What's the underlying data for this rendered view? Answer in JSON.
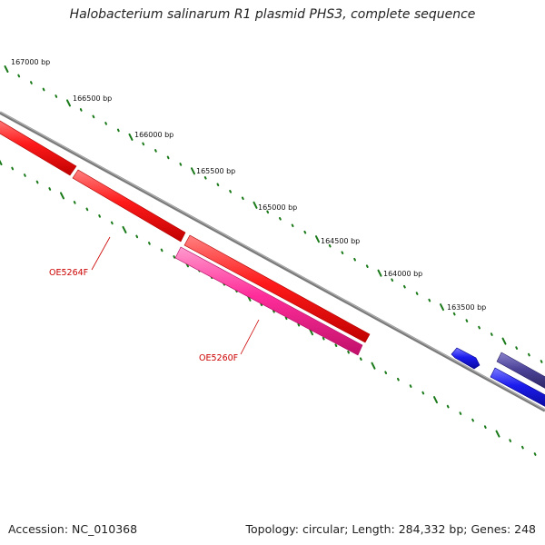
{
  "title": "Halobacterium salinarum R1 plasmid PHS3, complete sequence",
  "footer": {
    "accession": "Accession: NC_010368",
    "summary": "Topology: circular; Length: 284,332 bp; Genes: 248"
  },
  "ruler": {
    "labels": [
      "167000 bp",
      "166500 bp",
      "166000 bp",
      "165500 bp",
      "165000 bp",
      "164500 bp",
      "164000 bp",
      "163500 bp"
    ]
  },
  "genes": [
    {
      "label": "OE5264F",
      "color": "#ff1a1a"
    },
    {
      "label": "",
      "color": "#ff1a1a"
    },
    {
      "label": "",
      "color": "#ff1a1a"
    },
    {
      "label": "OE5260F",
      "color": "#ff2d9a"
    },
    {
      "label": "",
      "color": "#1c1cee"
    },
    {
      "label": "",
      "color": "#4d4499"
    },
    {
      "label": "",
      "color": "#1c1cee"
    }
  ],
  "colors": {
    "backbone": "#7a7a7a",
    "ticks": "#1a7a1a",
    "label_line": "#cc0000"
  }
}
